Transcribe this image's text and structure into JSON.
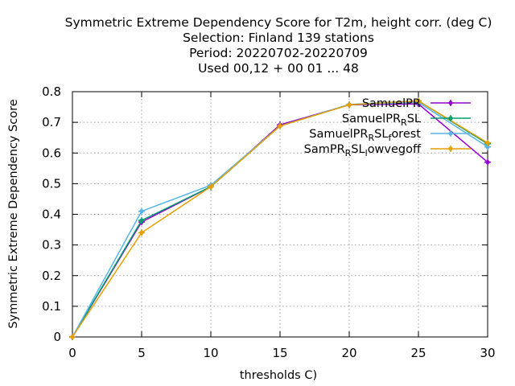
{
  "chart_data": {
    "type": "line",
    "title_lines": [
      "Symmetric Extreme Dependency Score  for T2m, height corr. (deg C)",
      "Selection: Finland    139 stations",
      "Period: 20220702-20220709",
      "Used  00,12  + 00 01 ... 48"
    ],
    "xlabel": "thresholds C)",
    "ylabel": "Symmetric Extreme Dependency Score",
    "xlim": [
      0,
      30
    ],
    "ylim": [
      0,
      0.8
    ],
    "x_ticks": [
      "0",
      "5",
      "10",
      "15",
      "20",
      "25",
      "30"
    ],
    "y_ticks": [
      "0",
      "0.1",
      "0.2",
      "0.3",
      "0.4",
      "0.5",
      "0.6",
      "0.7",
      "0.8"
    ],
    "grid": true,
    "legend_position": "top-right",
    "x": [
      0,
      5,
      10,
      15,
      20,
      25,
      30
    ],
    "series": [
      {
        "name": "SamuelPR",
        "label_main": "SamuelPR",
        "label_sub": "",
        "label_tail": "",
        "color": "#9400d3",
        "values": [
          0,
          0.375,
          0.49,
          0.692,
          0.757,
          0.76,
          0.57
        ]
      },
      {
        "name": "SamuelPR_RSL",
        "label_main": "SamuelPR",
        "label_sub": "R",
        "label_tail": "SL",
        "color": "#009e73",
        "values": [
          0,
          0.38,
          0.49,
          0.688,
          0.758,
          0.77,
          0.63
        ]
      },
      {
        "name": "SamuelPR_RSL_forest",
        "label_main": "SamuelPR",
        "label_sub": "R",
        "label_tail": "SL",
        "label_sub2": "f",
        "label_tail2": "orest",
        "color": "#56b4e9",
        "values": [
          0,
          0.41,
          0.495,
          0.688,
          0.758,
          0.765,
          0.62
        ]
      },
      {
        "name": "SamPR_RSL_lowvegoff",
        "label_main": "SamPR",
        "label_sub": "R",
        "label_tail": "SL",
        "label_sub2": "l",
        "label_tail2": "owvegoff",
        "color": "#e69f00",
        "values": [
          0,
          0.34,
          0.49,
          0.688,
          0.757,
          0.77,
          0.633
        ]
      }
    ]
  }
}
